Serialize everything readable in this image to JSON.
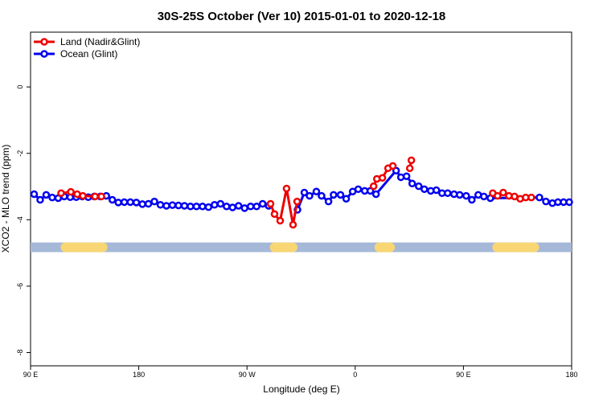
{
  "chart_data": {
    "type": "line",
    "title": "30S-25S October (Ver 10)   2015-01-01 to 2020-12-18",
    "x_label": "Longitude (deg E)",
    "y_label": "XCO2 - MLO trend (ppm)",
    "xlim": [
      90,
      540
    ],
    "ylim": [
      -8.4,
      1.65
    ],
    "xticks": [
      {
        "value": 90,
        "label": "90 E"
      },
      {
        "value": 180,
        "label": "180"
      },
      {
        "value": 270,
        "label": "90 W"
      },
      {
        "value": 360,
        "label": "0"
      },
      {
        "value": 450,
        "label": "90 E"
      },
      {
        "value": 540,
        "label": "180"
      }
    ],
    "yticks": [
      -8,
      -6,
      -4,
      -2,
      0
    ],
    "legend": "top-left",
    "band": {
      "y": -4.83,
      "color": "#a5b8d8",
      "land_color": "#f8d673",
      "land": [
        [
          115,
          154
        ],
        [
          289,
          312
        ],
        [
          376,
          393
        ],
        [
          474,
          513
        ]
      ]
    },
    "series": [
      {
        "name": "Ocean (Glint)",
        "color": "#0000ee",
        "x": [
          93,
          98,
          103,
          108,
          113,
          118,
          123,
          128,
          133,
          138,
          143,
          148,
          153,
          158,
          163,
          168,
          173,
          178,
          183,
          188,
          193,
          198,
          203,
          208,
          213,
          218,
          223,
          228,
          233,
          238,
          243,
          248,
          253,
          258,
          263,
          268,
          273,
          278,
          283,
          288,
          300,
          312,
          317.7,
          322,
          327.7,
          332,
          337.8,
          342,
          347.8,
          352.5,
          357.9,
          362.5,
          367.9,
          372.6,
          377.3,
          394,
          398,
          402.7,
          407.4,
          412.8,
          417.5,
          422.8,
          427.5,
          432.2,
          436.9,
          442.2,
          446.9,
          452.3,
          457,
          462.3,
          467,
          472.4,
          513.2,
          518.6,
          524,
          528.6,
          533.3,
          538
        ],
        "values": [
          -3.23,
          -3.4,
          -3.25,
          -3.33,
          -3.35,
          -3.3,
          -3.32,
          -3.32,
          -3.3,
          -3.32,
          -3.3,
          -3.3,
          -3.28,
          -3.4,
          -3.48,
          -3.47,
          -3.47,
          -3.48,
          -3.53,
          -3.52,
          -3.45,
          -3.55,
          -3.58,
          -3.56,
          -3.57,
          -3.58,
          -3.6,
          -3.6,
          -3.6,
          -3.62,
          -3.55,
          -3.52,
          -3.6,
          -3.63,
          -3.58,
          -3.65,
          -3.6,
          -3.6,
          -3.52,
          -3.58,
          null,
          -3.7,
          -3.18,
          -3.28,
          -3.15,
          -3.28,
          -3.45,
          -3.25,
          -3.25,
          -3.37,
          -3.15,
          -3.08,
          -3.13,
          -3.13,
          -3.23,
          -2.52,
          -2.72,
          -2.69,
          -2.91,
          -2.99,
          -3.08,
          -3.13,
          -3.11,
          -3.2,
          -3.2,
          -3.23,
          -3.25,
          -3.28,
          -3.4,
          -3.25,
          -3.3,
          -3.35,
          -3.33,
          -3.45,
          -3.5,
          -3.47,
          -3.47,
          -3.47
        ]
      },
      {
        "name": "Land (Nadir&Glint)",
        "color": "#ee0000",
        "x": [
          115.4,
          123.5,
          128.8,
          133.5,
          143.6,
          148.9,
          200,
          289.6,
          292.9,
          297.6,
          302.9,
          308.3,
          311.7,
          340,
          375.3,
          378,
          382.6,
          387.3,
          391.3,
          400,
          405.4,
          406.7,
          440,
          474.4,
          478.4,
          483.1,
          487.8,
          492.5,
          497.2,
          501.8,
          506.5
        ],
        "values": [
          -3.2,
          -3.16,
          -3.23,
          -3.28,
          -3.3,
          -3.3,
          null,
          -3.52,
          -3.83,
          -4.03,
          -3.06,
          -4.15,
          -3.45,
          null,
          -2.99,
          -2.77,
          -2.74,
          -2.45,
          -2.38,
          null,
          -2.45,
          -2.21,
          null,
          -3.2,
          -3.28,
          -3.18,
          -3.28,
          -3.3,
          -3.37,
          -3.33,
          -3.33
        ]
      }
    ]
  }
}
